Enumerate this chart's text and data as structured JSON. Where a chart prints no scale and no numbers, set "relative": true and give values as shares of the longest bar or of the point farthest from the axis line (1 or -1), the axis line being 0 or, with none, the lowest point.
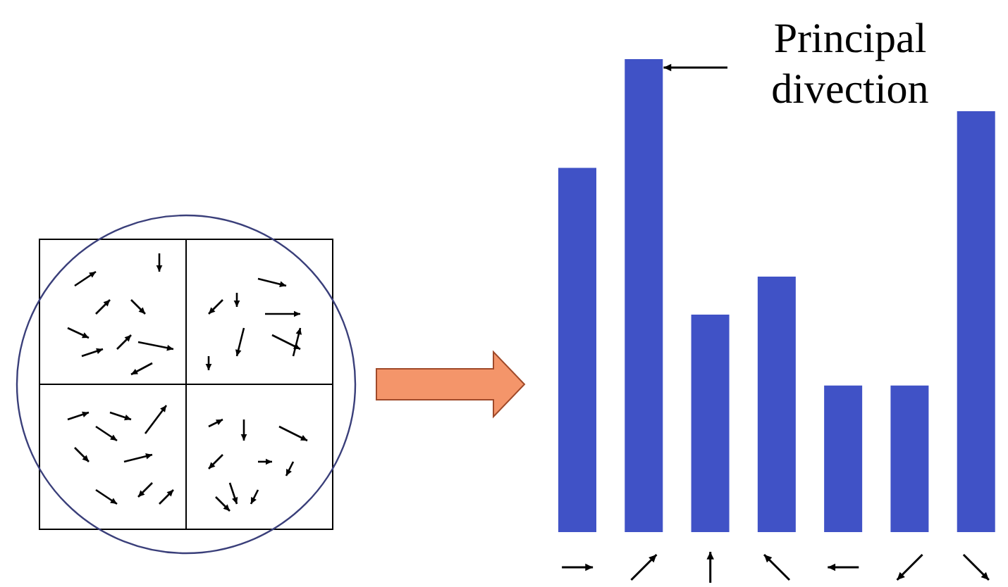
{
  "chart_data": {
    "type": "bar",
    "relative": true,
    "categories": [
      null,
      null,
      null,
      null,
      null,
      null,
      null
    ],
    "values": [
      0.77,
      1,
      0.46,
      0.54,
      0.31,
      0.31,
      0.89
    ],
    "color": "#4052c6",
    "annotations": [
      "Principal divection"
    ]
  }
}
